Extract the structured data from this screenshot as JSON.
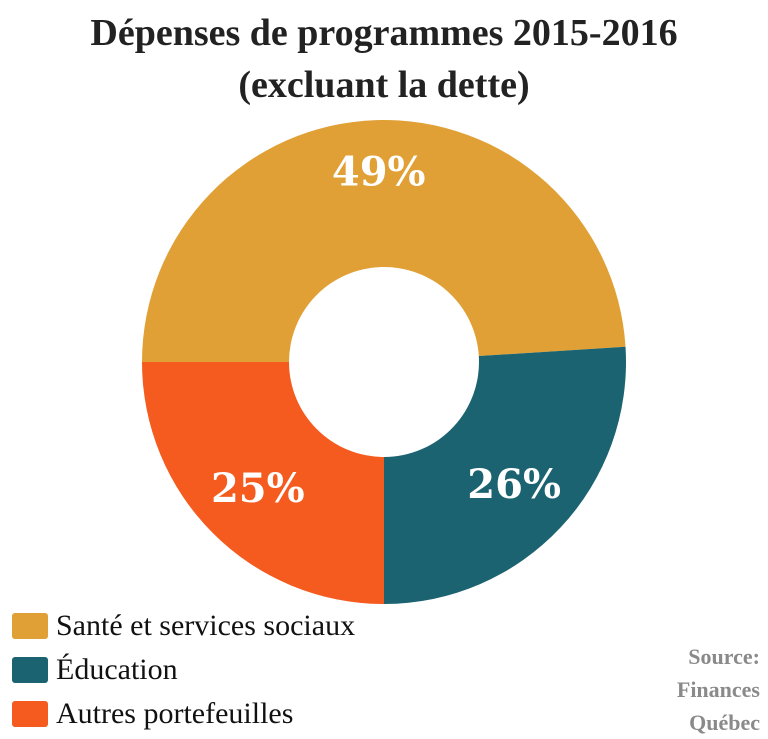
{
  "chart_data": {
    "type": "pie",
    "title": "Dépenses de programmes 2015-2016",
    "subtitle": "(excluant la dette)",
    "donut": true,
    "series": [
      {
        "name": "Santé et services sociaux",
        "value": 49,
        "label": "49%",
        "color": "#E0A035"
      },
      {
        "name": "Éducation",
        "value": 26,
        "label": "26%",
        "color": "#1B6370"
      },
      {
        "name": "Autres portefeuilles",
        "value": 25,
        "label": "25%",
        "color": "#F55A1E"
      }
    ],
    "legend_position": "bottom-left"
  },
  "source": {
    "line1": "Source:",
    "line2": "Finances",
    "line3": "Québec"
  }
}
